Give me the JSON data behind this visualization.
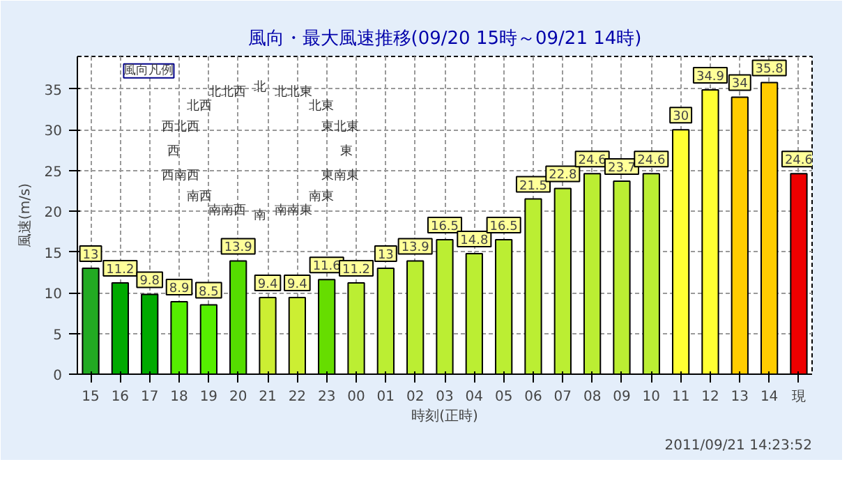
{
  "chart_data": {
    "type": "bar",
    "title": "風向・最大風速推移(09/20 15時～09/21 14時)",
    "xlabel": "時刻(正時)",
    "ylabel": "風速(m/s)",
    "categories": [
      "15",
      "16",
      "17",
      "18",
      "19",
      "20",
      "21",
      "22",
      "23",
      "00",
      "01",
      "02",
      "03",
      "04",
      "05",
      "06",
      "07",
      "08",
      "09",
      "10",
      "11",
      "12",
      "13",
      "14",
      "現"
    ],
    "values": [
      13,
      11.2,
      9.8,
      8.9,
      8.5,
      13.9,
      9.4,
      9.4,
      11.6,
      11.2,
      13,
      13.9,
      16.5,
      14.8,
      16.5,
      21.5,
      22.8,
      24.6,
      23.7,
      24.6,
      30,
      34.9,
      34,
      35.8,
      24.6
    ],
    "colors": [
      "#22aa22",
      "#00aa00",
      "#00aa00",
      "#55ee00",
      "#55ee00",
      "#55dd00",
      "#ccee33",
      "#ccee33",
      "#66dd00",
      "#bbee33",
      "#bbee33",
      "#bbee33",
      "#bbee33",
      "#bbee33",
      "#bbee33",
      "#bbee33",
      "#bbee33",
      "#bbee33",
      "#bbee33",
      "#bbee33",
      "#ffff33",
      "#ffff33",
      "#ffcc00",
      "#ffcc00",
      "#ee0000"
    ],
    "ylim": [
      0,
      39
    ],
    "yticks": [
      0,
      5,
      10,
      15,
      20,
      25,
      30,
      35
    ],
    "grid": true,
    "data_labels": true,
    "annotations": [
      "風向凡例",
      "北",
      "北北東",
      "北東",
      "東北東",
      "東",
      "東南東",
      "南東",
      "南南東",
      "南",
      "南南西",
      "南西",
      "西南西",
      "西",
      "西北西",
      "北西",
      "北北西",
      "2011/09/21 14:23:52"
    ]
  }
}
